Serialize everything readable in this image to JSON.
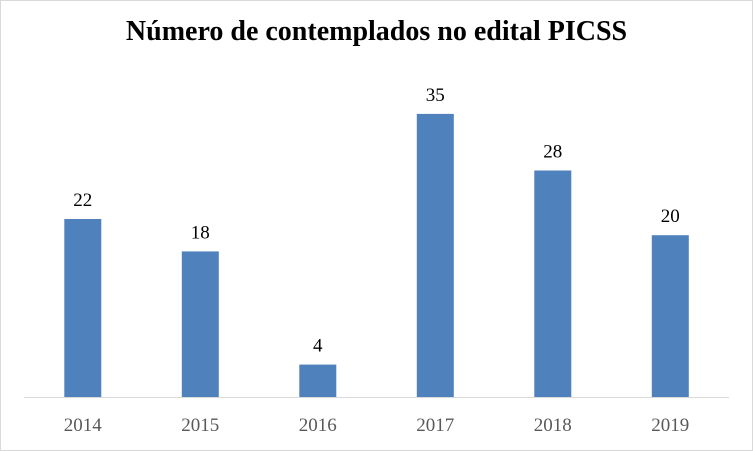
{
  "chart_data": {
    "type": "bar",
    "title": "Número de contemplados no edital PICSS",
    "xlabel": "",
    "ylabel": "",
    "categories": [
      "2014",
      "2015",
      "2016",
      "2017",
      "2018",
      "2019"
    ],
    "values": [
      22,
      18,
      4,
      35,
      28,
      20
    ],
    "data_labels": [
      "22",
      "18",
      "4",
      "35",
      "28",
      "20"
    ],
    "ylim": [
      0,
      40
    ],
    "grid": false,
    "legend": "none",
    "y_axis_visible": false,
    "colors": {
      "bar": "#4f81bd",
      "axis": "#d9d9d9",
      "tick_text": "#595959",
      "label_text": "#000000"
    }
  }
}
